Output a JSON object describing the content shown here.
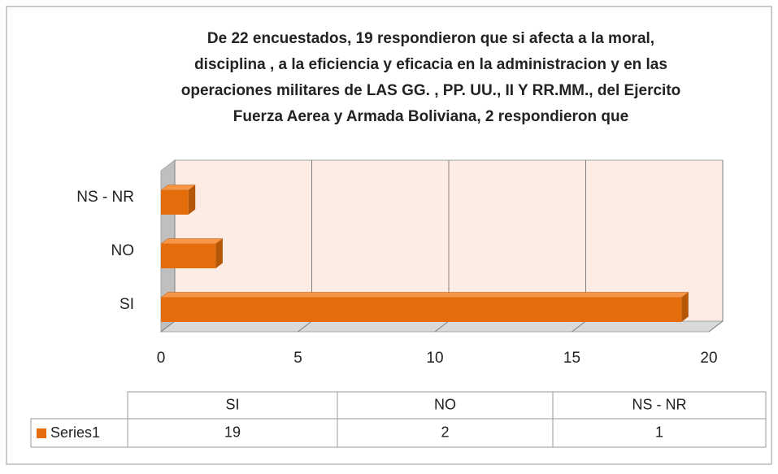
{
  "chart_data": {
    "type": "bar3d_horizontal",
    "title": [
      "De 22 encuestados, 19 respondieron que si afecta  a la moral,",
      "disciplina , a la eficiencia y eficacia  en la administracion y en las",
      "operaciones militares de LAS GG. , PP. UU., II Y RR.MM., del Ejercito",
      "Fuerza Aerea y Armada Boliviana, 2 respondieron que"
    ],
    "categories": [
      "SI",
      "NO",
      "NS - NR"
    ],
    "series": [
      {
        "name": "Series1",
        "color": "#e46c0a",
        "values": [
          19,
          2,
          1
        ]
      }
    ],
    "xlim": [
      0,
      20
    ],
    "xticks": [
      0,
      5,
      10,
      15,
      20
    ],
    "grid": true
  }
}
